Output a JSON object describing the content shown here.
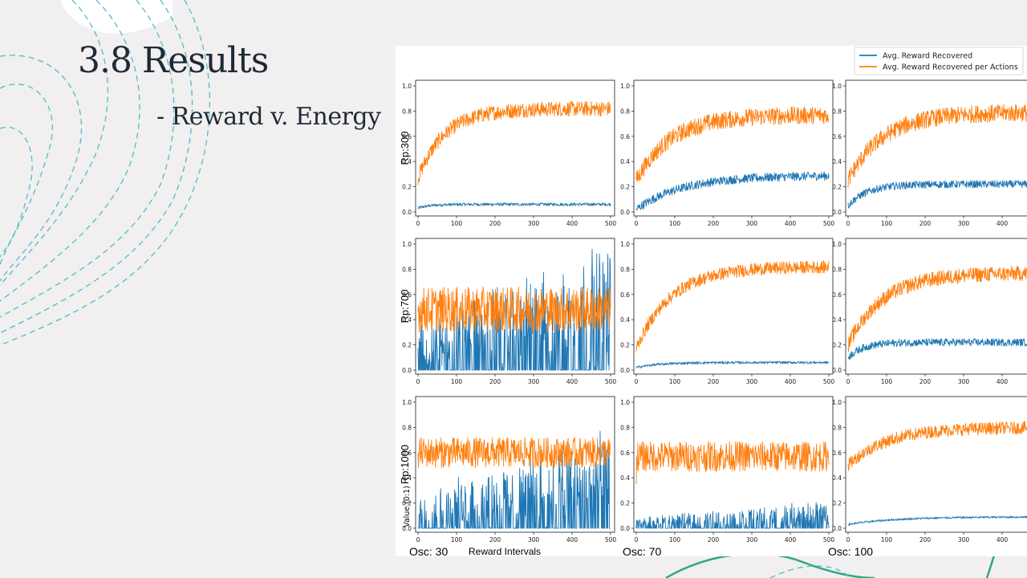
{
  "slide": {
    "title": "3.8 Results",
    "subtitle": "- Reward v. Energy"
  },
  "colors": {
    "background": "#f1efef",
    "title_text": "#1f2a36",
    "deco_dashed": "#4fbccc",
    "deco_green": "#2fa882",
    "series_reward": "#1f77b4",
    "series_per_action": "#ff7f0e"
  },
  "figure": {
    "legend": [
      "Avg. Reward Recovered",
      "Avg. Reward Recovered per Actions"
    ],
    "row_labels": [
      "Rp:300",
      "Rp:700",
      "Rp:1000"
    ],
    "col_labels": [
      "Osc: 30",
      "Osc: 70",
      "Osc: 100"
    ],
    "xlabel": "Reward Intervals",
    "ylabel": "Value (0:1)"
  },
  "chart_data": {
    "type": "line",
    "layout": "3x3 grid",
    "x": [
      0,
      500
    ],
    "xticks": [
      0,
      100,
      200,
      300,
      400,
      500
    ],
    "yticks": [
      0.0,
      0.2,
      0.4,
      0.6,
      0.8,
      1.0
    ],
    "ylim": [
      0,
      1
    ],
    "xlabel": "Reward Intervals",
    "ylabel": "Value (0:1)",
    "legend_position": "top-right",
    "series_names": [
      "Avg. Reward Recovered",
      "Avg. Reward Recovered per Actions"
    ],
    "panels": [
      {
        "row": "Rp:300",
        "col": "Osc: 30",
        "orange": {
          "start": 0.27,
          "plateau": 0.82,
          "rise_x": 70,
          "noise": 0.06
        },
        "blue": {
          "start": 0.03,
          "plateau": 0.06,
          "rise_x": 30,
          "noise": 0.012
        }
      },
      {
        "row": "Rp:300",
        "col": "Osc: 70",
        "orange": {
          "start": 0.25,
          "plateau": 0.77,
          "rise_x": 90,
          "noise": 0.07
        },
        "blue": {
          "start": 0.02,
          "plateau": 0.29,
          "rise_x": 120,
          "noise": 0.035
        }
      },
      {
        "row": "Rp:300",
        "col": "Osc: 100",
        "orange": {
          "start": 0.25,
          "plateau": 0.79,
          "rise_x": 90,
          "noise": 0.07
        },
        "blue": {
          "start": 0.05,
          "plateau": 0.22,
          "rise_x": 50,
          "noise": 0.03
        }
      },
      {
        "row": "Rp:700",
        "col": "Osc: 30",
        "orange": {
          "start": 0.45,
          "plateau": 0.48,
          "rise_x": 1,
          "noise": 0.18
        },
        "blue": {
          "start": 0.0,
          "plateau": 0.3,
          "rise_x": 1,
          "noise": 0.25,
          "spiky": true
        }
      },
      {
        "row": "Rp:700",
        "col": "Osc: 70",
        "orange": {
          "start": 0.17,
          "plateau": 0.82,
          "rise_x": 90,
          "noise": 0.05
        },
        "blue": {
          "start": 0.02,
          "plateau": 0.06,
          "rise_x": 60,
          "noise": 0.01
        }
      },
      {
        "row": "Rp:700",
        "col": "Osc: 100",
        "orange": {
          "start": 0.2,
          "plateau": 0.77,
          "rise_x": 90,
          "noise": 0.06
        },
        "blue": {
          "start": 0.1,
          "plateau": 0.22,
          "rise_x": 40,
          "noise": 0.03
        }
      },
      {
        "row": "Rp:1000",
        "col": "Osc: 30",
        "orange": {
          "start": 0.5,
          "plateau": 0.6,
          "rise_x": 1,
          "noise": 0.12
        },
        "blue": {
          "start": 0.0,
          "plateau": 0.2,
          "rise_x": 1,
          "noise": 0.2,
          "spiky": true
        }
      },
      {
        "row": "Rp:1000",
        "col": "Osc: 70",
        "orange": {
          "start": 0.45,
          "plateau": 0.57,
          "rise_x": 1,
          "noise": 0.12
        },
        "blue": {
          "start": 0.0,
          "plateau": 0.05,
          "rise_x": 1,
          "noise": 0.06,
          "spiky": true
        }
      },
      {
        "row": "Rp:1000",
        "col": "Osc: 100",
        "orange": {
          "start": 0.5,
          "plateau": 0.8,
          "rise_x": 100,
          "noise": 0.05
        },
        "blue": {
          "start": 0.03,
          "plateau": 0.09,
          "rise_x": 120,
          "noise": 0.008
        }
      }
    ]
  }
}
